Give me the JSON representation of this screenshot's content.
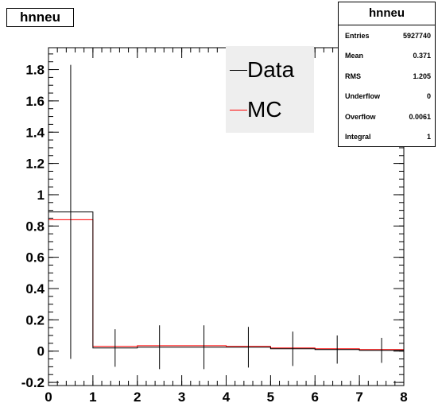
{
  "title": "hnneu",
  "stats": {
    "title": "hnneu",
    "rows": [
      {
        "label": "Entries",
        "value": "5927740"
      },
      {
        "label": "Mean",
        "value": "0.371"
      },
      {
        "label": "RMS",
        "value": "1.205"
      },
      {
        "label": "Underflow",
        "value": "0"
      },
      {
        "label": "Overflow",
        "value": "0.0061"
      },
      {
        "label": "Integral",
        "value": "1"
      }
    ]
  },
  "legend": {
    "entries": [
      {
        "label": "Data",
        "color": "#000000"
      },
      {
        "label": "MC",
        "color": "#ff0000"
      }
    ]
  },
  "chart_data": {
    "type": "line",
    "style": "step-histogram",
    "xlim": [
      0,
      8
    ],
    "ylim": [
      -0.22,
      1.94
    ],
    "x_ticks": [
      0,
      1,
      2,
      3,
      4,
      5,
      6,
      7,
      8
    ],
    "y_ticks": [
      -0.2,
      0,
      0.2,
      0.4,
      0.6,
      0.8,
      1,
      1.2,
      1.4,
      1.6,
      1.8
    ],
    "x_tick_labels": [
      "0",
      "1",
      "2",
      "3",
      "4",
      "5",
      "6",
      "7",
      "8"
    ],
    "y_tick_labels": [
      "-0.2",
      "0",
      "0.2",
      "0.4",
      "0.6",
      "0.8",
      "1",
      "1.2",
      "1.4",
      "1.6",
      "1.8"
    ],
    "bin_edges": [
      0,
      1,
      2,
      3,
      4,
      5,
      6,
      7,
      8
    ],
    "series": [
      {
        "name": "Data",
        "color": "#000000",
        "values": [
          0.89,
          0.02,
          0.025,
          0.025,
          0.025,
          0.015,
          0.01,
          0.005
        ],
        "errors": [
          0.94,
          0.12,
          0.14,
          0.14,
          0.13,
          0.11,
          0.09,
          0.08
        ]
      },
      {
        "name": "MC",
        "color": "#ff0000",
        "values": [
          0.84,
          0.03,
          0.035,
          0.035,
          0.03,
          0.02,
          0.015,
          0.01
        ]
      }
    ]
  }
}
